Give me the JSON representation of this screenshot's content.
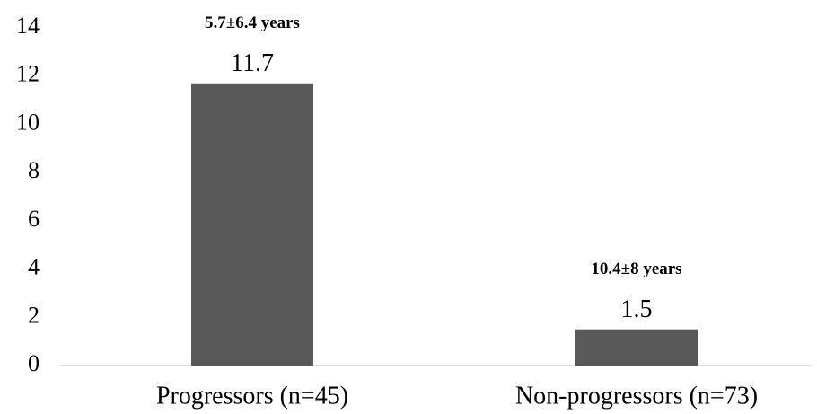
{
  "chart_data": {
    "type": "bar",
    "categories": [
      "Progressors (n=45)",
      "Non-progressors (n=73)"
    ],
    "values": [
      11.7,
      1.5
    ],
    "annotations": [
      "5.7±6.4 years",
      "10.4±8 years"
    ],
    "color": "#595959",
    "ylim": [
      0,
      14
    ],
    "yticks": [
      0,
      2,
      4,
      6,
      8,
      10,
      12,
      14
    ],
    "grid": false
  }
}
